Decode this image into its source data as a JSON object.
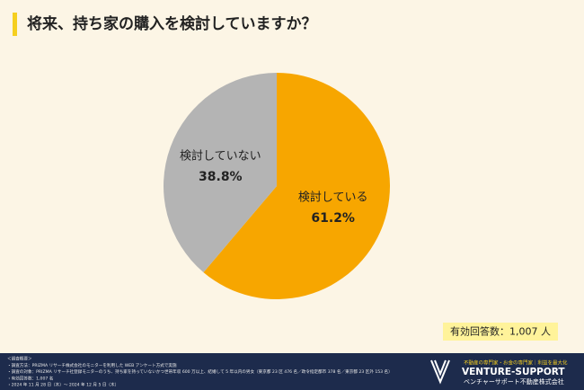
{
  "chart_data": {
    "type": "pie",
    "title": "将来、持ち家の購入を検討していますか？",
    "categories": [
      "検討している",
      "検討していない"
    ],
    "values": [
      61.2,
      38.8
    ],
    "value_labels": [
      "61.2%",
      "38.8%"
    ],
    "colors": [
      "#f7a600",
      "#b4b4b4"
    ],
    "annotation": "有効回答数：1,007 人"
  },
  "footer": {
    "notes": [
      "＜調査概要＞",
      "・調査方法：PRIZMA リサーチ株式会社のモニターを利用した WEB アンケート方式で実施",
      "・調査の対象：PRIZMA リサーチ社登録モニターのうち、持ち家を持っていないかつ世帯年収 600 万以上、結婚して 5 年以内の男女（東京都 23 区 476 名／政令指定都市 378 名／東京都 23 区外 153 名）",
      "・有効回答数：1,007 名",
      "・2024 年 11 月 28 日（木）～ 2024 年 12 月 5 日（木）"
    ],
    "tagline": "不動産の専門家・お金の専門家｜利益を最大化",
    "logo": "VENTURE-SUPPORT",
    "company": "ベンチャーサポート不動産株式会社"
  }
}
